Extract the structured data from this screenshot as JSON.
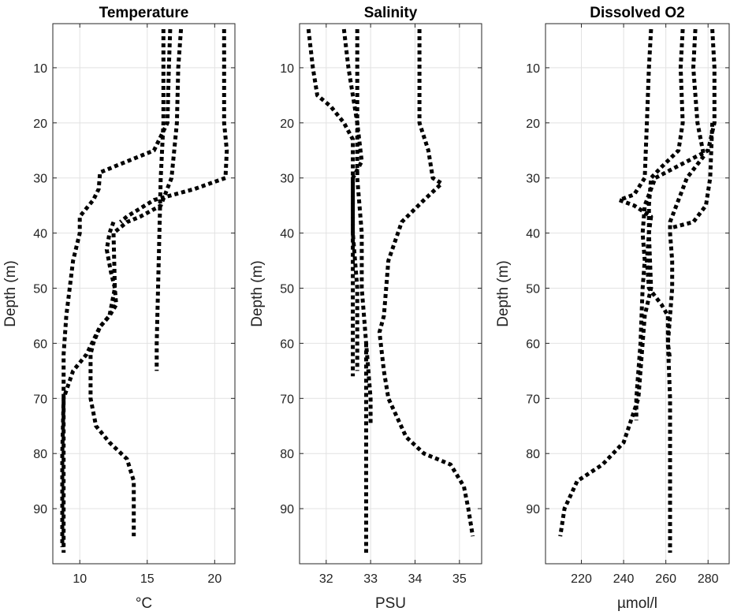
{
  "chart_data": [
    {
      "type": "line",
      "title": "Temperature",
      "xlabel": "°C",
      "ylabel": "Depth (m)",
      "xlim": [
        8,
        21.5
      ],
      "ylim": [
        100,
        2
      ],
      "y_reversed": true,
      "grid": true,
      "xticks": [
        10,
        15,
        20
      ],
      "yticks": [
        10,
        20,
        30,
        40,
        50,
        60,
        70,
        80,
        90
      ],
      "series": [
        {
          "points": [
            [
              16.2,
              3
            ],
            [
              16.2,
              10
            ],
            [
              16.2,
              20
            ],
            [
              16.0,
              30
            ],
            [
              15.9,
              40
            ],
            [
              15.8,
              50
            ],
            [
              15.7,
              60
            ],
            [
              15.7,
              65
            ]
          ]
        },
        {
          "points": [
            [
              17.5,
              3
            ],
            [
              17.3,
              10
            ],
            [
              17.2,
              20
            ],
            [
              16.8,
              30
            ],
            [
              16.0,
              35
            ],
            [
              14.5,
              37
            ],
            [
              13.5,
              38
            ],
            [
              12.5,
              40
            ],
            [
              12.6,
              50
            ],
            [
              12.2,
              55
            ],
            [
              11.5,
              57
            ],
            [
              10.5,
              62
            ],
            [
              9.5,
              65
            ],
            [
              8.8,
              70
            ],
            [
              8.7,
              80
            ],
            [
              8.7,
              90
            ],
            [
              8.7,
              97
            ]
          ]
        },
        {
          "points": [
            [
              20.7,
              3
            ],
            [
              20.7,
              10
            ],
            [
              20.7,
              20
            ],
            [
              20.9,
              25
            ],
            [
              20.8,
              30
            ],
            [
              18.5,
              32
            ],
            [
              15.5,
              34
            ],
            [
              13.5,
              37
            ],
            [
              13.0,
              38
            ]
          ]
        },
        {
          "points": [
            [
              16.7,
              3
            ],
            [
              16.6,
              10
            ],
            [
              16.5,
              20
            ],
            [
              15.5,
              25
            ],
            [
              13.5,
              27
            ],
            [
              11.5,
              29
            ],
            [
              11.4,
              32
            ],
            [
              11.0,
              34
            ],
            [
              10.0,
              37
            ],
            [
              10.0,
              40
            ],
            [
              9.5,
              45
            ],
            [
              9.0,
              55
            ],
            [
              8.8,
              62
            ],
            [
              8.8,
              70
            ],
            [
              8.8,
              80
            ],
            [
              8.8,
              90
            ],
            [
              8.8,
              98
            ]
          ]
        },
        {
          "points": [
            [
              12.5,
              38
            ],
            [
              12.2,
              40
            ],
            [
              12.0,
              43
            ],
            [
              12.3,
              47
            ],
            [
              12.6,
              50
            ],
            [
              12.7,
              53
            ],
            [
              12.2,
              55
            ],
            [
              11.5,
              57
            ],
            [
              11.0,
              60
            ],
            [
              10.8,
              62
            ],
            [
              10.8,
              70
            ],
            [
              11.2,
              75
            ],
            [
              12.2,
              78
            ],
            [
              13.5,
              81
            ],
            [
              14.0,
              85
            ],
            [
              14.0,
              90
            ],
            [
              14.0,
              95
            ]
          ]
        }
      ]
    },
    {
      "type": "line",
      "title": "Salinity",
      "xlabel": "PSU",
      "ylabel": "Depth (m)",
      "xlim": [
        31.4,
        35.5
      ],
      "ylim": [
        100,
        2
      ],
      "y_reversed": true,
      "grid": true,
      "xticks": [
        32,
        33,
        34,
        35
      ],
      "yticks": [
        10,
        20,
        30,
        40,
        50,
        60,
        70,
        80,
        90
      ],
      "series": [
        {
          "points": [
            [
              31.6,
              3
            ],
            [
              31.7,
              10
            ],
            [
              31.8,
              15
            ],
            [
              32.1,
              17
            ],
            [
              32.4,
              20
            ],
            [
              32.6,
              23
            ],
            [
              32.6,
              30
            ],
            [
              32.6,
              40
            ],
            [
              32.7,
              50
            ],
            [
              32.7,
              60
            ],
            [
              32.7,
              65
            ]
          ]
        },
        {
          "points": [
            [
              32.4,
              3
            ],
            [
              32.5,
              10
            ],
            [
              32.7,
              20
            ],
            [
              32.8,
              27
            ],
            [
              32.6,
              30
            ],
            [
              32.6,
              40
            ],
            [
              32.6,
              50
            ],
            [
              32.6,
              60
            ],
            [
              32.6,
              66
            ]
          ]
        },
        {
          "points": [
            [
              34.1,
              3
            ],
            [
              34.1,
              10
            ],
            [
              34.1,
              20
            ],
            [
              34.3,
              25
            ],
            [
              34.4,
              30
            ],
            [
              34.6,
              31
            ],
            [
              34.2,
              34
            ],
            [
              33.7,
              38
            ],
            [
              33.4,
              45
            ],
            [
              33.3,
              55
            ],
            [
              33.2,
              58
            ],
            [
              33.3,
              65
            ],
            [
              33.4,
              70
            ],
            [
              33.8,
              77
            ],
            [
              34.2,
              80
            ],
            [
              34.8,
              82
            ],
            [
              35.1,
              86
            ],
            [
              35.2,
              90
            ],
            [
              35.3,
              95
            ]
          ]
        },
        {
          "points": [
            [
              32.7,
              3
            ],
            [
              32.7,
              10
            ],
            [
              32.7,
              20
            ],
            [
              32.7,
              30
            ],
            [
              32.8,
              40
            ],
            [
              32.8,
              50
            ],
            [
              32.9,
              60
            ],
            [
              33.0,
              70
            ],
            [
              33.0,
              75
            ]
          ]
        },
        {
          "points": [
            [
              32.9,
              60
            ],
            [
              32.9,
              70
            ],
            [
              32.9,
              80
            ],
            [
              32.9,
              90
            ],
            [
              32.9,
              98
            ]
          ]
        }
      ]
    },
    {
      "type": "line",
      "title": "Dissolved O2",
      "xlabel": "µmol/l",
      "ylabel": "Depth (m)",
      "xlim": [
        203,
        290
      ],
      "ylim": [
        100,
        2
      ],
      "y_reversed": true,
      "grid": true,
      "xticks": [
        220,
        240,
        260,
        280
      ],
      "yticks": [
        10,
        20,
        30,
        40,
        50,
        60,
        70,
        80,
        90
      ],
      "series": [
        {
          "points": [
            [
              253,
              3
            ],
            [
              252,
              10
            ],
            [
              251,
              20
            ],
            [
              250,
              30
            ],
            [
              245,
              33
            ],
            [
              238,
              34
            ],
            [
              245,
              35
            ],
            [
              253,
              37
            ],
            [
              252,
              40
            ],
            [
              253,
              50
            ],
            [
              250,
              55
            ],
            [
              249,
              60
            ],
            [
              247,
              70
            ],
            [
              240,
              78
            ],
            [
              230,
              82
            ],
            [
              218,
              85
            ],
            [
              212,
              90
            ],
            [
              210,
              95
            ]
          ]
        },
        {
          "points": [
            [
              268,
              3
            ],
            [
              267,
              10
            ],
            [
              268,
              20
            ],
            [
              266,
              25
            ],
            [
              258,
              28
            ],
            [
              253,
              30
            ],
            [
              252,
              35
            ],
            [
              252,
              40
            ],
            [
              251,
              45
            ],
            [
              252,
              50
            ],
            [
              258,
              53
            ],
            [
              261,
              55
            ],
            [
              261,
              60
            ],
            [
              262,
              70
            ],
            [
              262,
              80
            ],
            [
              262,
              90
            ],
            [
              262,
              98
            ]
          ]
        },
        {
          "points": [
            [
              274,
              3
            ],
            [
              273,
              10
            ],
            [
              275,
              20
            ],
            [
              278,
              26
            ],
            [
              270,
              30
            ],
            [
              265,
              35
            ],
            [
              262,
              38
            ],
            [
              262,
              40
            ],
            [
              263,
              45
            ],
            [
              263,
              50
            ],
            [
              262,
              55
            ],
            [
              261,
              60
            ],
            [
              262,
              63
            ]
          ]
        },
        {
          "points": [
            [
              282,
              3
            ],
            [
              283,
              10
            ],
            [
              283,
              20
            ],
            [
              280,
              25
            ],
            [
              265,
              28
            ],
            [
              255,
              30
            ],
            [
              250,
              35
            ],
            [
              249,
              40
            ],
            [
              250,
              45
            ],
            [
              249,
              50
            ],
            [
              248,
              60
            ],
            [
              246,
              70
            ],
            [
              246,
              74
            ]
          ]
        },
        {
          "points": [
            [
              282,
              20
            ],
            [
              281,
              30
            ],
            [
              279,
              35
            ],
            [
              273,
              38
            ],
            [
              263,
              39
            ]
          ]
        }
      ]
    }
  ]
}
